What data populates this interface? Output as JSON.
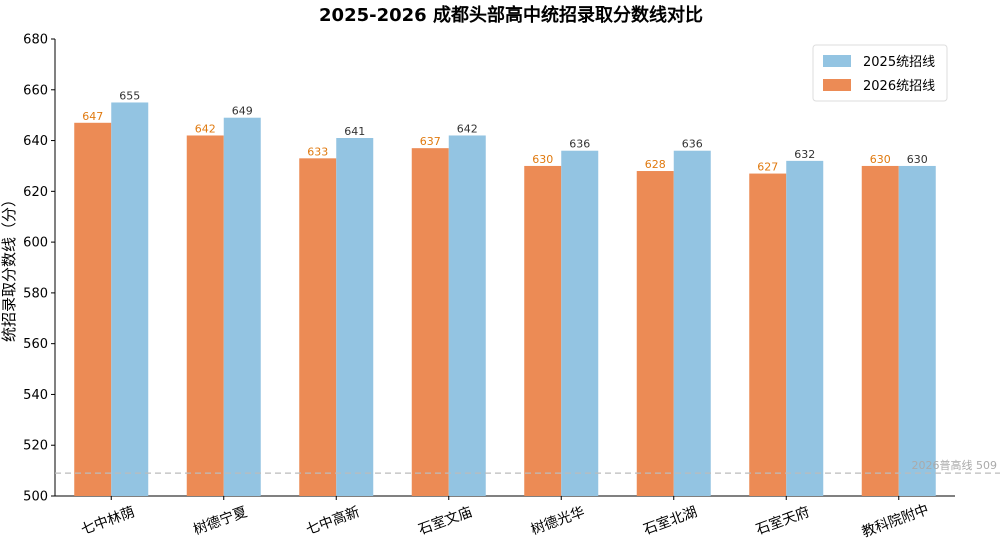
{
  "chart_data": {
    "type": "bar",
    "title": "2025-2026 成都头部高中统招录取分数线对比",
    "xlabel": "",
    "ylabel": "统招录取分数线（分）",
    "ylim": [
      500,
      680
    ],
    "yticks": [
      500,
      520,
      540,
      560,
      580,
      600,
      620,
      640,
      660,
      680
    ],
    "categories": [
      "七中林荫",
      "树德宁夏",
      "七中高新",
      "石室文庙",
      "树德光华",
      "石室北湖",
      "石室天府",
      "教科院附中"
    ],
    "series": [
      {
        "name": "2026统招线",
        "color": "#ec8b55",
        "label_color": "#e07a10",
        "values": [
          647,
          642,
          633,
          637,
          630,
          628,
          627,
          630
        ]
      },
      {
        "name": "2025统招线",
        "color": "#93c4e2",
        "label_color": "#333333",
        "values": [
          655,
          649,
          641,
          642,
          636,
          636,
          632,
          630
        ]
      }
    ],
    "legend_order": [
      "2025统招线",
      "2026统招线"
    ],
    "legend_position": "top-right",
    "reference_line": {
      "value": 509,
      "label": "2026普高线 509",
      "color": "#bbbbbb",
      "style": "dashed"
    },
    "grid": false
  }
}
